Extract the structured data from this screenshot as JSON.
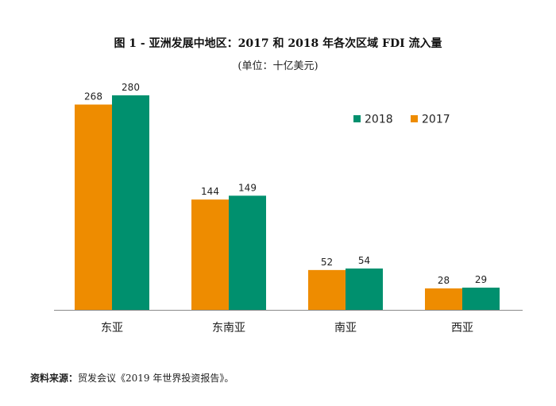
{
  "chart_data": {
    "type": "bar",
    "title": "图 1 - 亚洲发展中地区：2017 和 2018 年各次区域 FDI 流入量",
    "subtitle": "(单位：十亿美元)",
    "categories": [
      "东亚",
      "东南亚",
      "南亚",
      "西亚"
    ],
    "series": [
      {
        "name": "2017",
        "color": "#EE8C00",
        "values": [
          268,
          144,
          52,
          28
        ]
      },
      {
        "name": "2018",
        "color": "#00906E",
        "values": [
          280,
          149,
          54,
          29
        ]
      }
    ],
    "legend_order": [
      "2018",
      "2017"
    ],
    "legend_position": "top-right",
    "ylim": [
      0,
      300
    ],
    "grid": false,
    "xlabel": "",
    "ylabel": ""
  },
  "source": {
    "label": "资料来源：",
    "text": "贸发会议《2019 年世界投资报告》。"
  }
}
